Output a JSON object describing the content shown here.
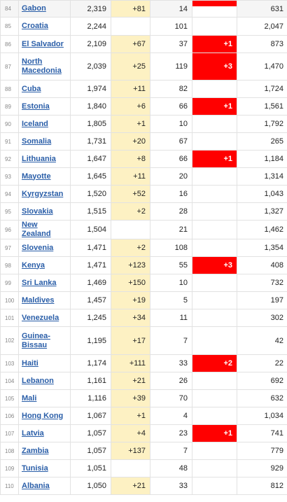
{
  "colors": {
    "new_cases_bg": "#fdf1c3",
    "new_deaths_bg": "#ff0000",
    "link": "#2a5ea8"
  },
  "rows": [
    {
      "rank": "84",
      "country": "Gabon",
      "total_cases": "2,319",
      "new_cases": "+81",
      "total_deaths": "14",
      "new_deaths": "",
      "total_recovered": "631"
    },
    {
      "rank": "85",
      "country": "Croatia",
      "total_cases": "2,244",
      "new_cases": "",
      "total_deaths": "101",
      "new_deaths": "",
      "total_recovered": "2,047"
    },
    {
      "rank": "86",
      "country": "El Salvador",
      "total_cases": "2,109",
      "new_cases": "+67",
      "total_deaths": "37",
      "new_deaths": "+1",
      "total_recovered": "873"
    },
    {
      "rank": "87",
      "country": "North Macedonia",
      "total_cases": "2,039",
      "new_cases": "+25",
      "total_deaths": "119",
      "new_deaths": "+3",
      "total_recovered": "1,470"
    },
    {
      "rank": "88",
      "country": "Cuba",
      "total_cases": "1,974",
      "new_cases": "+11",
      "total_deaths": "82",
      "new_deaths": "",
      "total_recovered": "1,724"
    },
    {
      "rank": "89",
      "country": "Estonia",
      "total_cases": "1,840",
      "new_cases": "+6",
      "total_deaths": "66",
      "new_deaths": "+1",
      "total_recovered": "1,561"
    },
    {
      "rank": "90",
      "country": "Iceland",
      "total_cases": "1,805",
      "new_cases": "+1",
      "total_deaths": "10",
      "new_deaths": "",
      "total_recovered": "1,792"
    },
    {
      "rank": "91",
      "country": "Somalia",
      "total_cases": "1,731",
      "new_cases": "+20",
      "total_deaths": "67",
      "new_deaths": "",
      "total_recovered": "265"
    },
    {
      "rank": "92",
      "country": "Lithuania",
      "total_cases": "1,647",
      "new_cases": "+8",
      "total_deaths": "66",
      "new_deaths": "+1",
      "total_recovered": "1,184"
    },
    {
      "rank": "93",
      "country": "Mayotte",
      "total_cases": "1,645",
      "new_cases": "+11",
      "total_deaths": "20",
      "new_deaths": "",
      "total_recovered": "1,314"
    },
    {
      "rank": "94",
      "country": "Kyrgyzstan",
      "total_cases": "1,520",
      "new_cases": "+52",
      "total_deaths": "16",
      "new_deaths": "",
      "total_recovered": "1,043"
    },
    {
      "rank": "95",
      "country": "Slovakia",
      "total_cases": "1,515",
      "new_cases": "+2",
      "total_deaths": "28",
      "new_deaths": "",
      "total_recovered": "1,327"
    },
    {
      "rank": "96",
      "country": "New Zealand",
      "total_cases": "1,504",
      "new_cases": "",
      "total_deaths": "21",
      "new_deaths": "",
      "total_recovered": "1,462"
    },
    {
      "rank": "97",
      "country": "Slovenia",
      "total_cases": "1,471",
      "new_cases": "+2",
      "total_deaths": "108",
      "new_deaths": "",
      "total_recovered": "1,354"
    },
    {
      "rank": "98",
      "country": "Kenya",
      "total_cases": "1,471",
      "new_cases": "+123",
      "total_deaths": "55",
      "new_deaths": "+3",
      "total_recovered": "408"
    },
    {
      "rank": "99",
      "country": "Sri Lanka",
      "total_cases": "1,469",
      "new_cases": "+150",
      "total_deaths": "10",
      "new_deaths": "",
      "total_recovered": "732"
    },
    {
      "rank": "100",
      "country": "Maldives",
      "total_cases": "1,457",
      "new_cases": "+19",
      "total_deaths": "5",
      "new_deaths": "",
      "total_recovered": "197"
    },
    {
      "rank": "101",
      "country": "Venezuela",
      "total_cases": "1,245",
      "new_cases": "+34",
      "total_deaths": "11",
      "new_deaths": "",
      "total_recovered": "302"
    },
    {
      "rank": "102",
      "country": "Guinea-Bissau",
      "total_cases": "1,195",
      "new_cases": "+17",
      "total_deaths": "7",
      "new_deaths": "",
      "total_recovered": "42"
    },
    {
      "rank": "103",
      "country": "Haiti",
      "total_cases": "1,174",
      "new_cases": "+111",
      "total_deaths": "33",
      "new_deaths": "+2",
      "total_recovered": "22"
    },
    {
      "rank": "104",
      "country": "Lebanon",
      "total_cases": "1,161",
      "new_cases": "+21",
      "total_deaths": "26",
      "new_deaths": "",
      "total_recovered": "692"
    },
    {
      "rank": "105",
      "country": "Mali",
      "total_cases": "1,116",
      "new_cases": "+39",
      "total_deaths": "70",
      "new_deaths": "",
      "total_recovered": "632"
    },
    {
      "rank": "106",
      "country": "Hong Kong",
      "total_cases": "1,067",
      "new_cases": "+1",
      "total_deaths": "4",
      "new_deaths": "",
      "total_recovered": "1,034"
    },
    {
      "rank": "107",
      "country": "Latvia",
      "total_cases": "1,057",
      "new_cases": "+4",
      "total_deaths": "23",
      "new_deaths": "+1",
      "total_recovered": "741"
    },
    {
      "rank": "108",
      "country": "Zambia",
      "total_cases": "1,057",
      "new_cases": "+137",
      "total_deaths": "7",
      "new_deaths": "",
      "total_recovered": "779"
    },
    {
      "rank": "109",
      "country": "Tunisia",
      "total_cases": "1,051",
      "new_cases": "",
      "total_deaths": "48",
      "new_deaths": "",
      "total_recovered": "929"
    },
    {
      "rank": "110",
      "country": "Albania",
      "total_cases": "1,050",
      "new_cases": "+21",
      "total_deaths": "33",
      "new_deaths": "",
      "total_recovered": "812"
    }
  ]
}
